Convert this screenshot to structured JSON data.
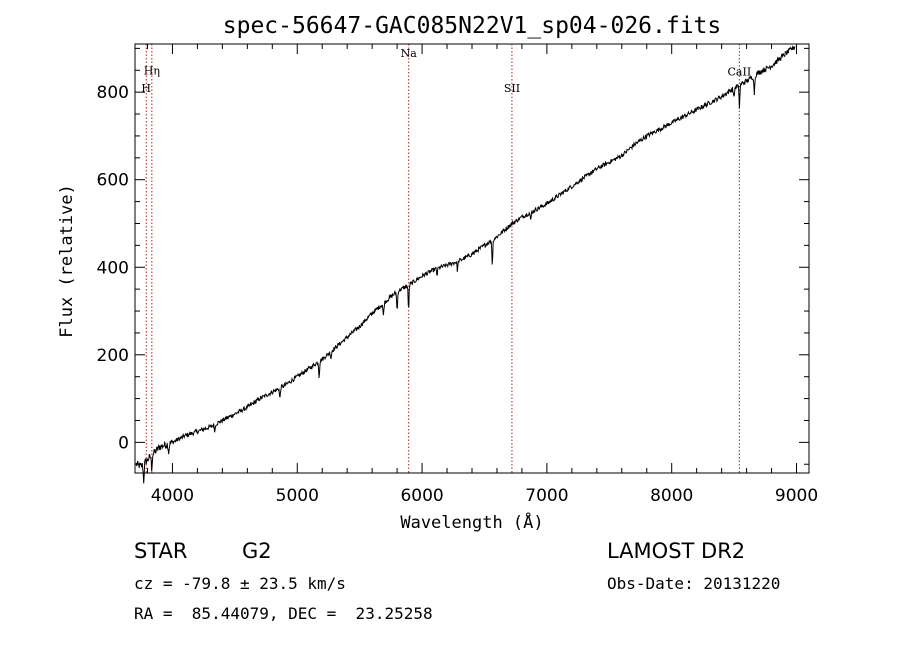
{
  "chart_data": {
    "type": "line",
    "title": "spec-56647-GAC085N22V1_sp04-026.fits",
    "xlabel": "Wavelength (Å)",
    "ylabel": "Flux (relative)",
    "xlim": [
      3700,
      9100
    ],
    "ylim": [
      -70,
      910
    ],
    "x_ticks": [
      4000,
      5000,
      6000,
      7000,
      8000,
      9000
    ],
    "y_ticks": [
      0,
      200,
      400,
      600,
      800
    ],
    "grid": false,
    "series": [
      {
        "x": [
          3710,
          3750,
          3800,
          3850,
          3900,
          4000,
          4100,
          4200,
          4300,
          4400,
          4500,
          4600,
          4700,
          4800,
          4900,
          5000,
          5100,
          5200,
          5300,
          5400,
          5500,
          5600,
          5700,
          5800,
          5900,
          6000,
          6100,
          6200,
          6300,
          6400,
          6500,
          6600,
          6700,
          6800,
          6900,
          7000,
          7100,
          7200,
          7300,
          7400,
          7500,
          7600,
          7700,
          7800,
          7900,
          8000,
          8100,
          8200,
          8300,
          8400,
          8500,
          8600,
          8700,
          8800,
          8900,
          8990
        ],
        "y": [
          -50,
          -55,
          -40,
          -25,
          -10,
          0,
          15,
          25,
          35,
          50,
          65,
          80,
          100,
          115,
          130,
          150,
          170,
          190,
          215,
          240,
          265,
          295,
          320,
          345,
          360,
          380,
          395,
          405,
          415,
          430,
          450,
          470,
          495,
          515,
          530,
          545,
          565,
          585,
          605,
          625,
          640,
          655,
          680,
          700,
          715,
          730,
          745,
          760,
          775,
          790,
          810,
          825,
          845,
          860,
          885,
          905
        ]
      }
    ],
    "dips": [
      {
        "x": 3770,
        "depth": 40
      },
      {
        "x": 3834,
        "depth": 30
      },
      {
        "x": 3970,
        "depth": 20
      },
      {
        "x": 4340,
        "depth": 15
      },
      {
        "x": 4861,
        "depth": 25
      },
      {
        "x": 5175,
        "depth": 35
      },
      {
        "x": 5270,
        "depth": 15
      },
      {
        "x": 5690,
        "depth": 30
      },
      {
        "x": 5800,
        "depth": 45
      },
      {
        "x": 5892,
        "depth": 55
      },
      {
        "x": 6120,
        "depth": 15
      },
      {
        "x": 6283,
        "depth": 20
      },
      {
        "x": 6563,
        "depth": 55
      },
      {
        "x": 6870,
        "depth": 20
      },
      {
        "x": 8498,
        "depth": 25
      },
      {
        "x": 8542,
        "depth": 50
      },
      {
        "x": 8662,
        "depth": 40
      }
    ],
    "lines": [
      {
        "label": "Hη",
        "x": 3835,
        "label_y": 840
      },
      {
        "label": "H",
        "x": 3790,
        "label_y": 800
      },
      {
        "label": "Na",
        "x": 5893,
        "label_y": 880
      },
      {
        "label": "SII",
        "x": 6720,
        "label_y": 800
      },
      {
        "label": "CaII",
        "x": 8542,
        "label_y": 838
      }
    ],
    "line_color": "#b22222"
  },
  "info": {
    "obj_class": "STAR",
    "subclass": "G2",
    "cz": "cz = -79.8 ± 23.5 km/s",
    "coords": "RA =  85.44079, DEC =  23.25258",
    "survey": "LAMOST DR2",
    "obs_date": "Obs-Date: 20131220"
  }
}
